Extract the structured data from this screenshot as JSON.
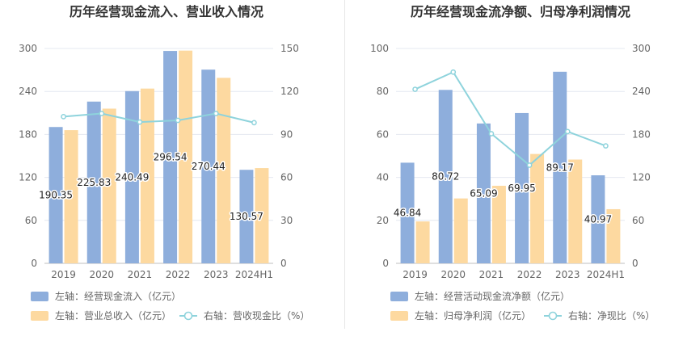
{
  "chart_data": [
    {
      "type": "bar",
      "title": "历年经营现金流入、营业收入情况",
      "categories": [
        "2019",
        "2020",
        "2021",
        "2022",
        "2023",
        "2024H1"
      ],
      "y_left_ticks": [
        "0",
        "60",
        "120",
        "180",
        "240",
        "300"
      ],
      "y_right_ticks": [
        "0",
        "30",
        "60",
        "90",
        "120",
        "150"
      ],
      "ylim_left": [
        0,
        300
      ],
      "ylim_right": [
        0,
        150
      ],
      "grid": true,
      "series": [
        {
          "name": "左轴：经营现金流入（亿元）",
          "type": "bar",
          "axis": "left",
          "color": "#8eaedc",
          "values": [
            190.35,
            225.83,
            240.49,
            296.54,
            270.44,
            130.57
          ],
          "labels": [
            "190.35",
            "225.83",
            "240.49",
            "296.54",
            "270.44",
            "130.57"
          ]
        },
        {
          "name": "左轴：营业总收入（亿元）",
          "type": "bar",
          "axis": "left",
          "color": "#fdd9a0",
          "values": [
            186,
            216,
            244,
            297,
            259,
            133
          ]
        },
        {
          "name": "右轴：营收现金比（%）",
          "type": "line",
          "axis": "right",
          "color": "#8ed3dc",
          "values": [
            102.4,
            104.6,
            98.6,
            99.8,
            104.6,
            98.2
          ]
        }
      ],
      "legend": {
        "position": "bottom"
      }
    },
    {
      "type": "bar",
      "title": "历年经营现金流净额、归母净利润情况",
      "categories": [
        "2019",
        "2020",
        "2021",
        "2022",
        "2023",
        "2024H1"
      ],
      "y_left_ticks": [
        "0",
        "20",
        "40",
        "60",
        "80",
        "100"
      ],
      "y_right_ticks": [
        "0",
        "60",
        "120",
        "180",
        "240",
        "300"
      ],
      "ylim_left": [
        0,
        100
      ],
      "ylim_right": [
        0,
        300
      ],
      "grid": true,
      "series": [
        {
          "name": "左轴：经营活动现金流净额（亿元）",
          "type": "bar",
          "axis": "left",
          "color": "#8eaedc",
          "values": [
            46.84,
            80.72,
            65.09,
            69.95,
            89.17,
            40.97
          ],
          "labels": [
            "46.84",
            "80.72",
            "65.09",
            "69.95",
            "89.17",
            "40.97"
          ]
        },
        {
          "name": "左轴：归母净利润（亿元）",
          "type": "bar",
          "axis": "left",
          "color": "#fdd9a0",
          "values": [
            19.5,
            30.2,
            36.1,
            50.9,
            48.3,
            25.2
          ]
        },
        {
          "name": "右轴：净现比（%）",
          "type": "line",
          "axis": "right",
          "color": "#8ed3dc",
          "values": [
            243,
            267,
            181,
            137,
            184,
            164
          ]
        }
      ],
      "legend": {
        "position": "bottom"
      }
    }
  ]
}
